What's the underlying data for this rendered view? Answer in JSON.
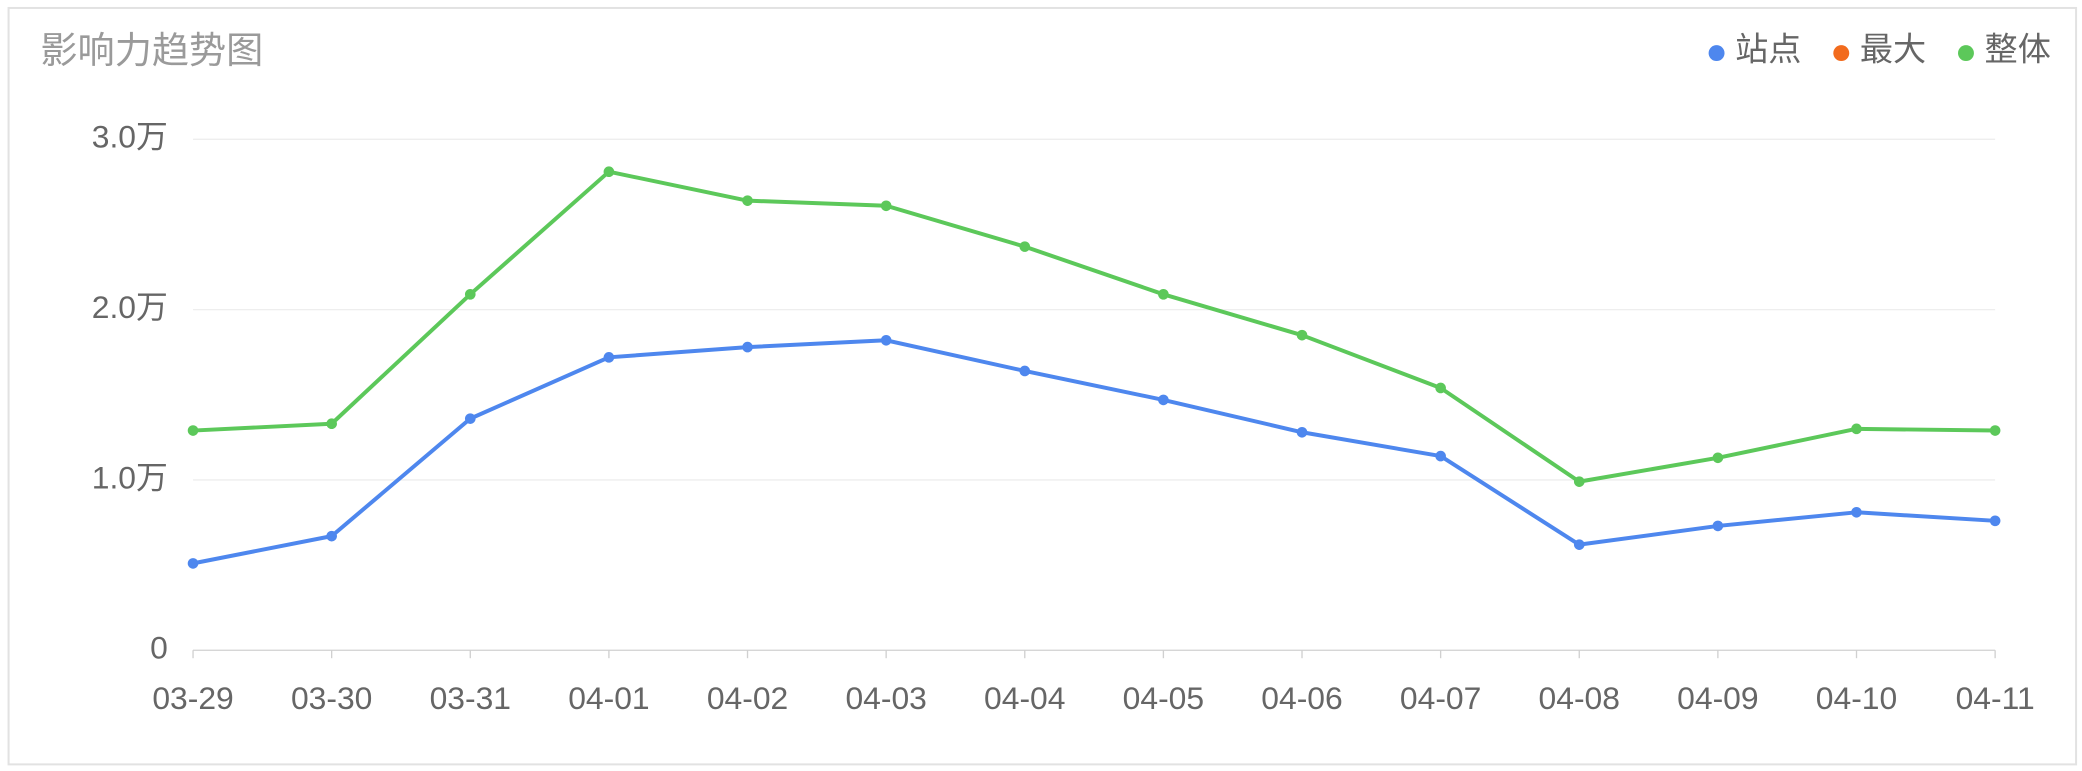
{
  "chart_data": {
    "type": "line",
    "title": "影响力趋势图",
    "categories": [
      "03-29",
      "03-30",
      "03-31",
      "04-01",
      "04-02",
      "04-03",
      "04-04",
      "04-05",
      "04-06",
      "04-07",
      "04-08",
      "04-09",
      "04-10",
      "04-11"
    ],
    "series": [
      {
        "name": "站点",
        "color": "#4e87ee",
        "values": [
          5100,
          6700,
          13600,
          17200,
          17800,
          18200,
          16400,
          14700,
          12800,
          11400,
          6200,
          7300,
          8100,
          7600
        ]
      },
      {
        "name": "最大",
        "color": "#f26b1d",
        "values": [
          null,
          null,
          null,
          null,
          null,
          null,
          null,
          null,
          null,
          null,
          null,
          null,
          null,
          null
        ]
      },
      {
        "name": "整体",
        "color": "#5cc85a",
        "values": [
          12900,
          13300,
          20900,
          28100,
          26400,
          26100,
          23700,
          20900,
          18500,
          15400,
          9900,
          11300,
          13000,
          12900
        ]
      }
    ],
    "ylim": [
      0,
      30000
    ],
    "yticks": [
      0,
      {
        "value": 10000,
        "label": "1.0万"
      },
      {
        "value": 20000,
        "label": "2.0万"
      },
      {
        "value": 30000,
        "label": "3.0万"
      }
    ],
    "grid": true,
    "legend": "top-right"
  }
}
